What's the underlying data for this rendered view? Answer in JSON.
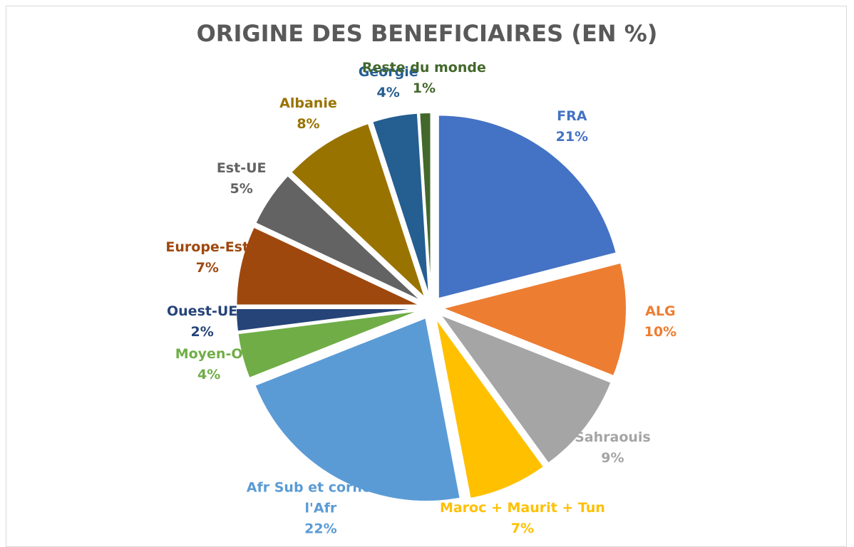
{
  "chart_data": {
    "type": "pie",
    "title": "ORIGINE DES BENEFICIAIRES (EN %)",
    "categories": [
      "FRA",
      "ALG",
      "Sahraouis",
      "Maroc + Maurit + Tun",
      "Afr Sub et corne de l'Afr",
      "Moyen-O",
      "Ouest-UE",
      "Europe-Est",
      "Est-UE",
      "Albanie",
      "Géorgie",
      "Reste du monde"
    ],
    "values": [
      21,
      10,
      9,
      7,
      22,
      4,
      2,
      7,
      5,
      8,
      4,
      1
    ],
    "value_labels": [
      "21%",
      "10%",
      "9%",
      "7%",
      "22%",
      "4%",
      "2%",
      "7%",
      "5%",
      "8%",
      "4%",
      "1%"
    ],
    "colors": [
      "#4472c4",
      "#ed7d31",
      "#a5a5a5",
      "#ffc000",
      "#5b9bd5",
      "#70ad47",
      "#264478",
      "#9e480e",
      "#636363",
      "#997300",
      "#255e91",
      "#43682b"
    ]
  }
}
